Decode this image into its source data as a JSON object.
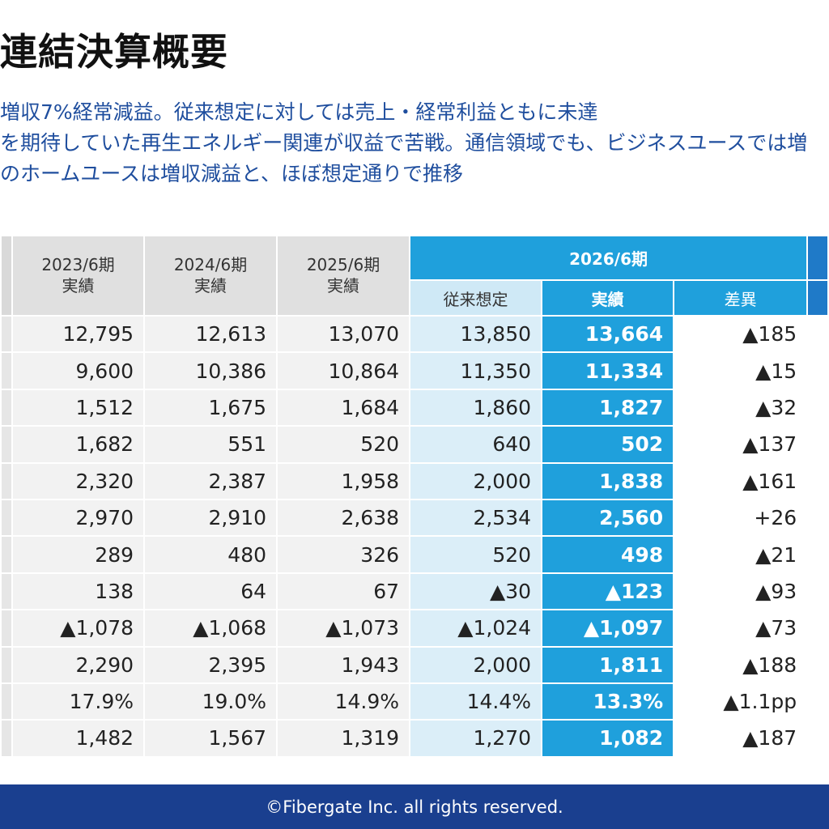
{
  "title": "連結決算概要",
  "bullets": [
    "増収7%経常減益。従来想定に対しては売上・経常利益ともに未達",
    "を期待していた再生エネルギー関連が収益で苦戦。通信領域でも、ビジネスユースでは増",
    "のホームユースは増収減益と、ほぼ想定通りで推移"
  ],
  "table": {
    "columns": [
      {
        "year": "2023/6期",
        "sub": "実績"
      },
      {
        "year": "2024/6期",
        "sub": "実績"
      },
      {
        "year": "2025/6期",
        "sub": "実績"
      }
    ],
    "group": {
      "label": "2026/6期",
      "sub_labels": [
        "従来想定",
        "実績",
        "差異"
      ]
    },
    "rows": [
      [
        "12,795",
        "12,613",
        "13,070",
        "13,850",
        "13,664",
        "▲185"
      ],
      [
        "9,600",
        "10,386",
        "10,864",
        "11,350",
        "11,334",
        "▲15"
      ],
      [
        "1,512",
        "1,675",
        "1,684",
        "1,860",
        "1,827",
        "▲32"
      ],
      [
        "1,682",
        "551",
        "520",
        "640",
        "502",
        "▲137"
      ],
      [
        "2,320",
        "2,387",
        "1,958",
        "2,000",
        "1,838",
        "▲161"
      ],
      [
        "2,970",
        "2,910",
        "2,638",
        "2,534",
        "2,560",
        "+26"
      ],
      [
        "289",
        "480",
        "326",
        "520",
        "498",
        "▲21"
      ],
      [
        "138",
        "64",
        "67",
        "▲30",
        "▲123",
        "▲93"
      ],
      [
        "▲1,078",
        "▲1,068",
        "▲1,073",
        "▲1,024",
        "▲1,097",
        "▲73"
      ],
      [
        "2,290",
        "2,395",
        "1,943",
        "2,000",
        "1,811",
        "▲188"
      ],
      [
        "17.9%",
        "19.0%",
        "14.9%",
        "14.4%",
        "13.3%",
        "▲1.1pp"
      ],
      [
        "1,482",
        "1,567",
        "1,319",
        "1,270",
        "1,082",
        "▲187"
      ]
    ]
  },
  "footer": "©Fibergate Inc. all rights reserved.",
  "colors": {
    "accent_blue": "#1fa0dc",
    "plan_blue": "#dbeef8",
    "footer_navy": "#1a3f8f",
    "bullet_text": "#1f4e9e"
  }
}
